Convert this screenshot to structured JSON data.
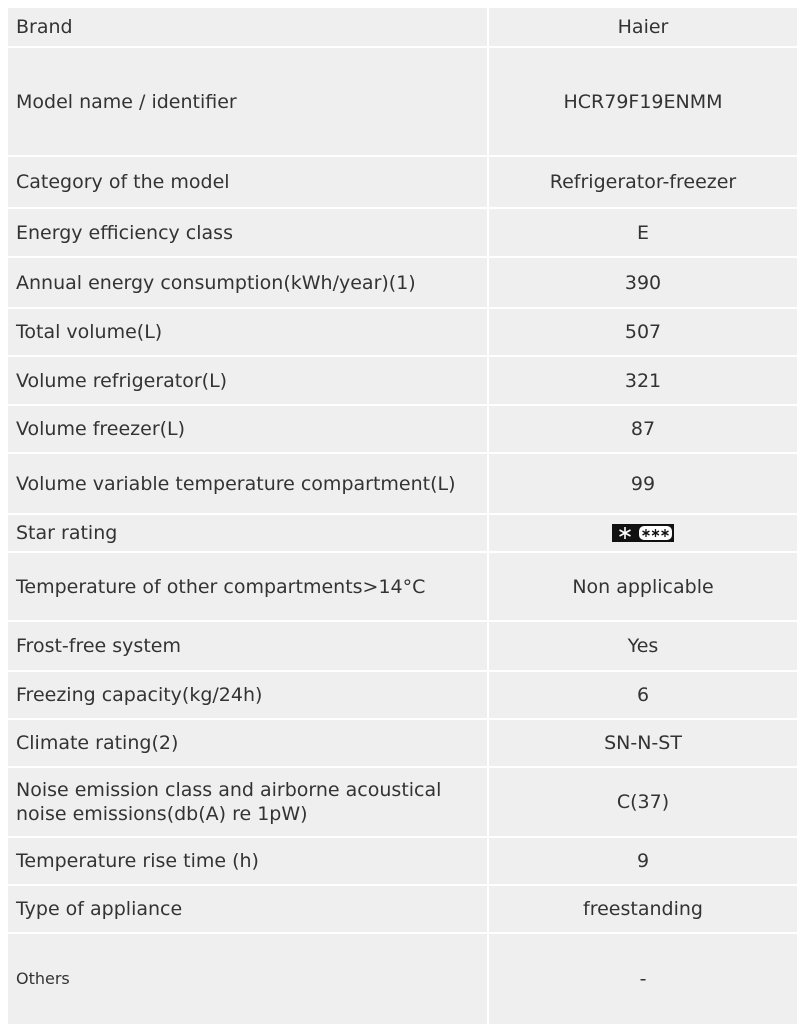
{
  "table": {
    "rows": [
      [
        "Brand",
        "Haier"
      ],
      [
        "Model name / identifier",
        "HCR79F19ENMM"
      ],
      [
        "Category of the model",
        "Refrigerator-freezer"
      ],
      [
        "Energy efficiency class",
        "E"
      ],
      [
        "Annual energy consumption(kWh/year)(1)",
        "390"
      ],
      [
        "Total volume(L)",
        "507"
      ],
      [
        "Volume refrigerator(L)",
        "321"
      ],
      [
        "Volume freezer(L)",
        "87"
      ],
      [
        "Volume variable temperature compartment(L)",
        "99"
      ],
      [
        "Star rating"
      ],
      [
        "Temperature of other compartments>14°C",
        "Non applicable"
      ],
      [
        "Frost-free system",
        "Yes"
      ],
      [
        "Freezing capacity(kg/24h)",
        "6"
      ],
      [
        "Climate rating(2)",
        "SN-N-ST"
      ],
      [
        "Noise emission class and airborne acous­tical noise emissions(db(A) re 1pW)",
        "C(37)"
      ],
      [
        "Temperature rise time (h)",
        "9"
      ],
      [
        "Type of appliance",
        "freestanding"
      ],
      [
        "Others",
        "-"
      ]
    ]
  }
}
